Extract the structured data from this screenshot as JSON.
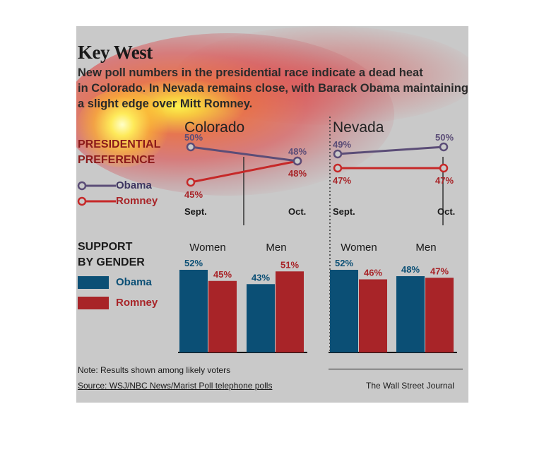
{
  "headline": "Key West",
  "dek_lines": [
    "New poll numbers in the presidential race indicate a dead heat",
    "in Colorado. In Nevada remains close, with Barack Obama maintaining",
    "a slight edge over Mitt Romney."
  ],
  "presidential_label": [
    "PRESIDENTIAL",
    "PREFERENCE"
  ],
  "gender_label": [
    "SUPPORT",
    "BY GENDER"
  ],
  "legend": {
    "obama": "Obama",
    "romney": "Romney"
  },
  "colors": {
    "obama_line": "#5b4d77",
    "romney_line": "#c62828",
    "obama_bar": "#0b4f75",
    "romney_bar": "#a82428",
    "obama_label": "#0b4f75",
    "romney_label": "#a82428"
  },
  "note": "Note: Results shown among likely voters",
  "source": "Source: WSJ/NBC News/Marist Poll telephone polls",
  "credit": "The Wall Street Journal",
  "chart_data": [
    {
      "type": "line",
      "title": "Colorado",
      "x": [
        "Sept.",
        "Oct."
      ],
      "series": [
        {
          "name": "Obama",
          "values": [
            50,
            48
          ],
          "labels": [
            "50%",
            "48%"
          ]
        },
        {
          "name": "Romney",
          "values": [
            45,
            48
          ],
          "labels": [
            "45%",
            "48%"
          ]
        }
      ]
    },
    {
      "type": "line",
      "title": "Nevada",
      "x": [
        "Sept.",
        "Oct."
      ],
      "series": [
        {
          "name": "Obama",
          "values": [
            49,
            50
          ],
          "labels": [
            "49%",
            "50%"
          ]
        },
        {
          "name": "Romney",
          "values": [
            47,
            47
          ],
          "labels": [
            "47%",
            "47%"
          ]
        }
      ]
    },
    {
      "type": "bar",
      "title": "",
      "categories": [
        "Women",
        "Men"
      ],
      "series": [
        {
          "name": "Obama",
          "values": [
            52,
            43
          ],
          "labels": [
            "52%",
            "43%"
          ]
        },
        {
          "name": "Romney",
          "values": [
            45,
            51
          ],
          "labels": [
            "45%",
            "51%"
          ]
        }
      ]
    },
    {
      "type": "bar",
      "title": "",
      "categories": [
        "Women",
        "Men"
      ],
      "series": [
        {
          "name": "Obama",
          "values": [
            52,
            48
          ],
          "labels": [
            "52%",
            "48%"
          ]
        },
        {
          "name": "Romney",
          "values": [
            46,
            47
          ],
          "labels": [
            "46%",
            "47%"
          ]
        }
      ]
    }
  ]
}
